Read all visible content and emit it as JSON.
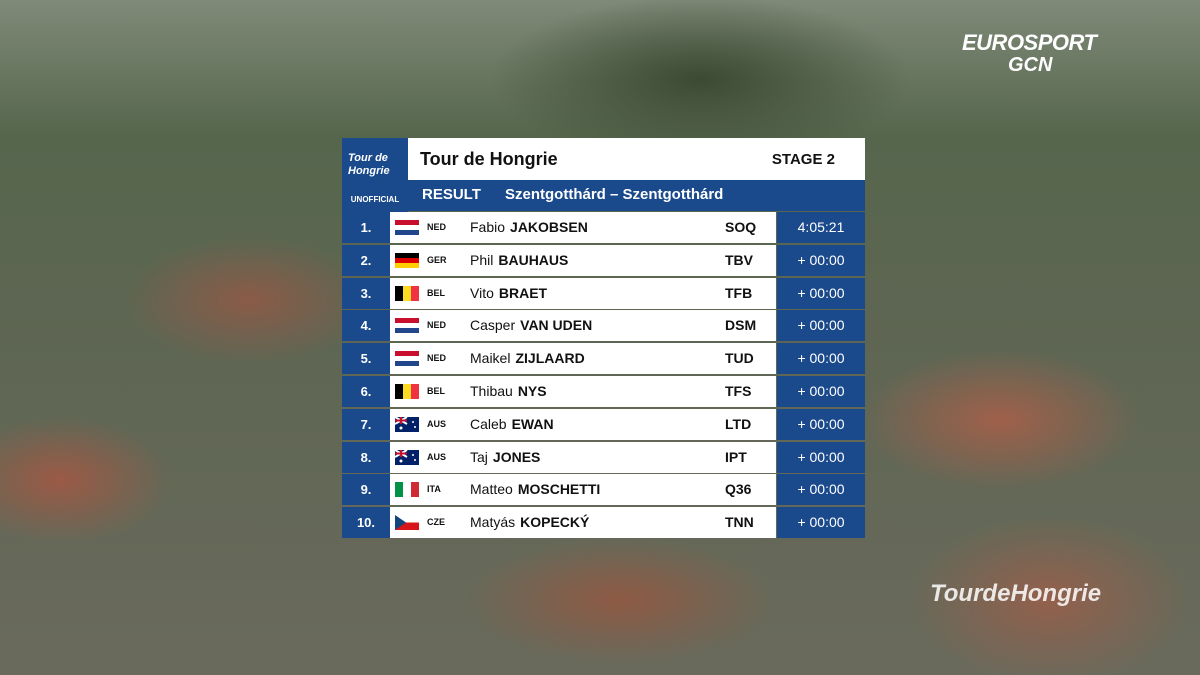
{
  "broadcaster": {
    "name": "EUROSPORT",
    "sub": "GCN"
  },
  "logo": {
    "line1": "Tour de",
    "line2": "Hongrie",
    "status": "UNOFFICIAL"
  },
  "header": {
    "title": "Tour de Hongrie",
    "stage": "STAGE 2",
    "label": "RESULT",
    "route": "Szentgotthárd – Szentgotthárd"
  },
  "table": {
    "rows": [
      [
        "1.",
        "NED",
        "Fabio",
        "JAKOBSEN",
        "SOQ",
        "4:05:21"
      ],
      [
        "2.",
        "GER",
        "Phil",
        "BAUHAUS",
        "TBV",
        "+ 00:00"
      ],
      [
        "3.",
        "BEL",
        "Vito",
        "BRAET",
        "TFB",
        "+ 00:00"
      ],
      [
        "4.",
        "NED",
        "Casper",
        "VAN UDEN",
        "DSM",
        "+ 00:00"
      ],
      [
        "5.",
        "NED",
        "Maikel",
        "ZIJLAARD",
        "TUD",
        "+ 00:00"
      ],
      [
        "6.",
        "BEL",
        "Thibau",
        "NYS",
        "TFS",
        "+ 00:00"
      ],
      [
        "7.",
        "AUS",
        "Caleb",
        "EWAN",
        "LTD",
        "+ 00:00"
      ],
      [
        "8.",
        "AUS",
        "Taj",
        "JONES",
        "IPT",
        "+ 00:00"
      ],
      [
        "9.",
        "ITA",
        "Matteo",
        "MOSCHETTI",
        "Q36",
        "+ 00:00"
      ],
      [
        "10.",
        "CZE",
        "Matyás",
        "KOPECKÝ",
        "TNN",
        "+ 00:00"
      ]
    ]
  },
  "watermark": "TourdeHongrie"
}
